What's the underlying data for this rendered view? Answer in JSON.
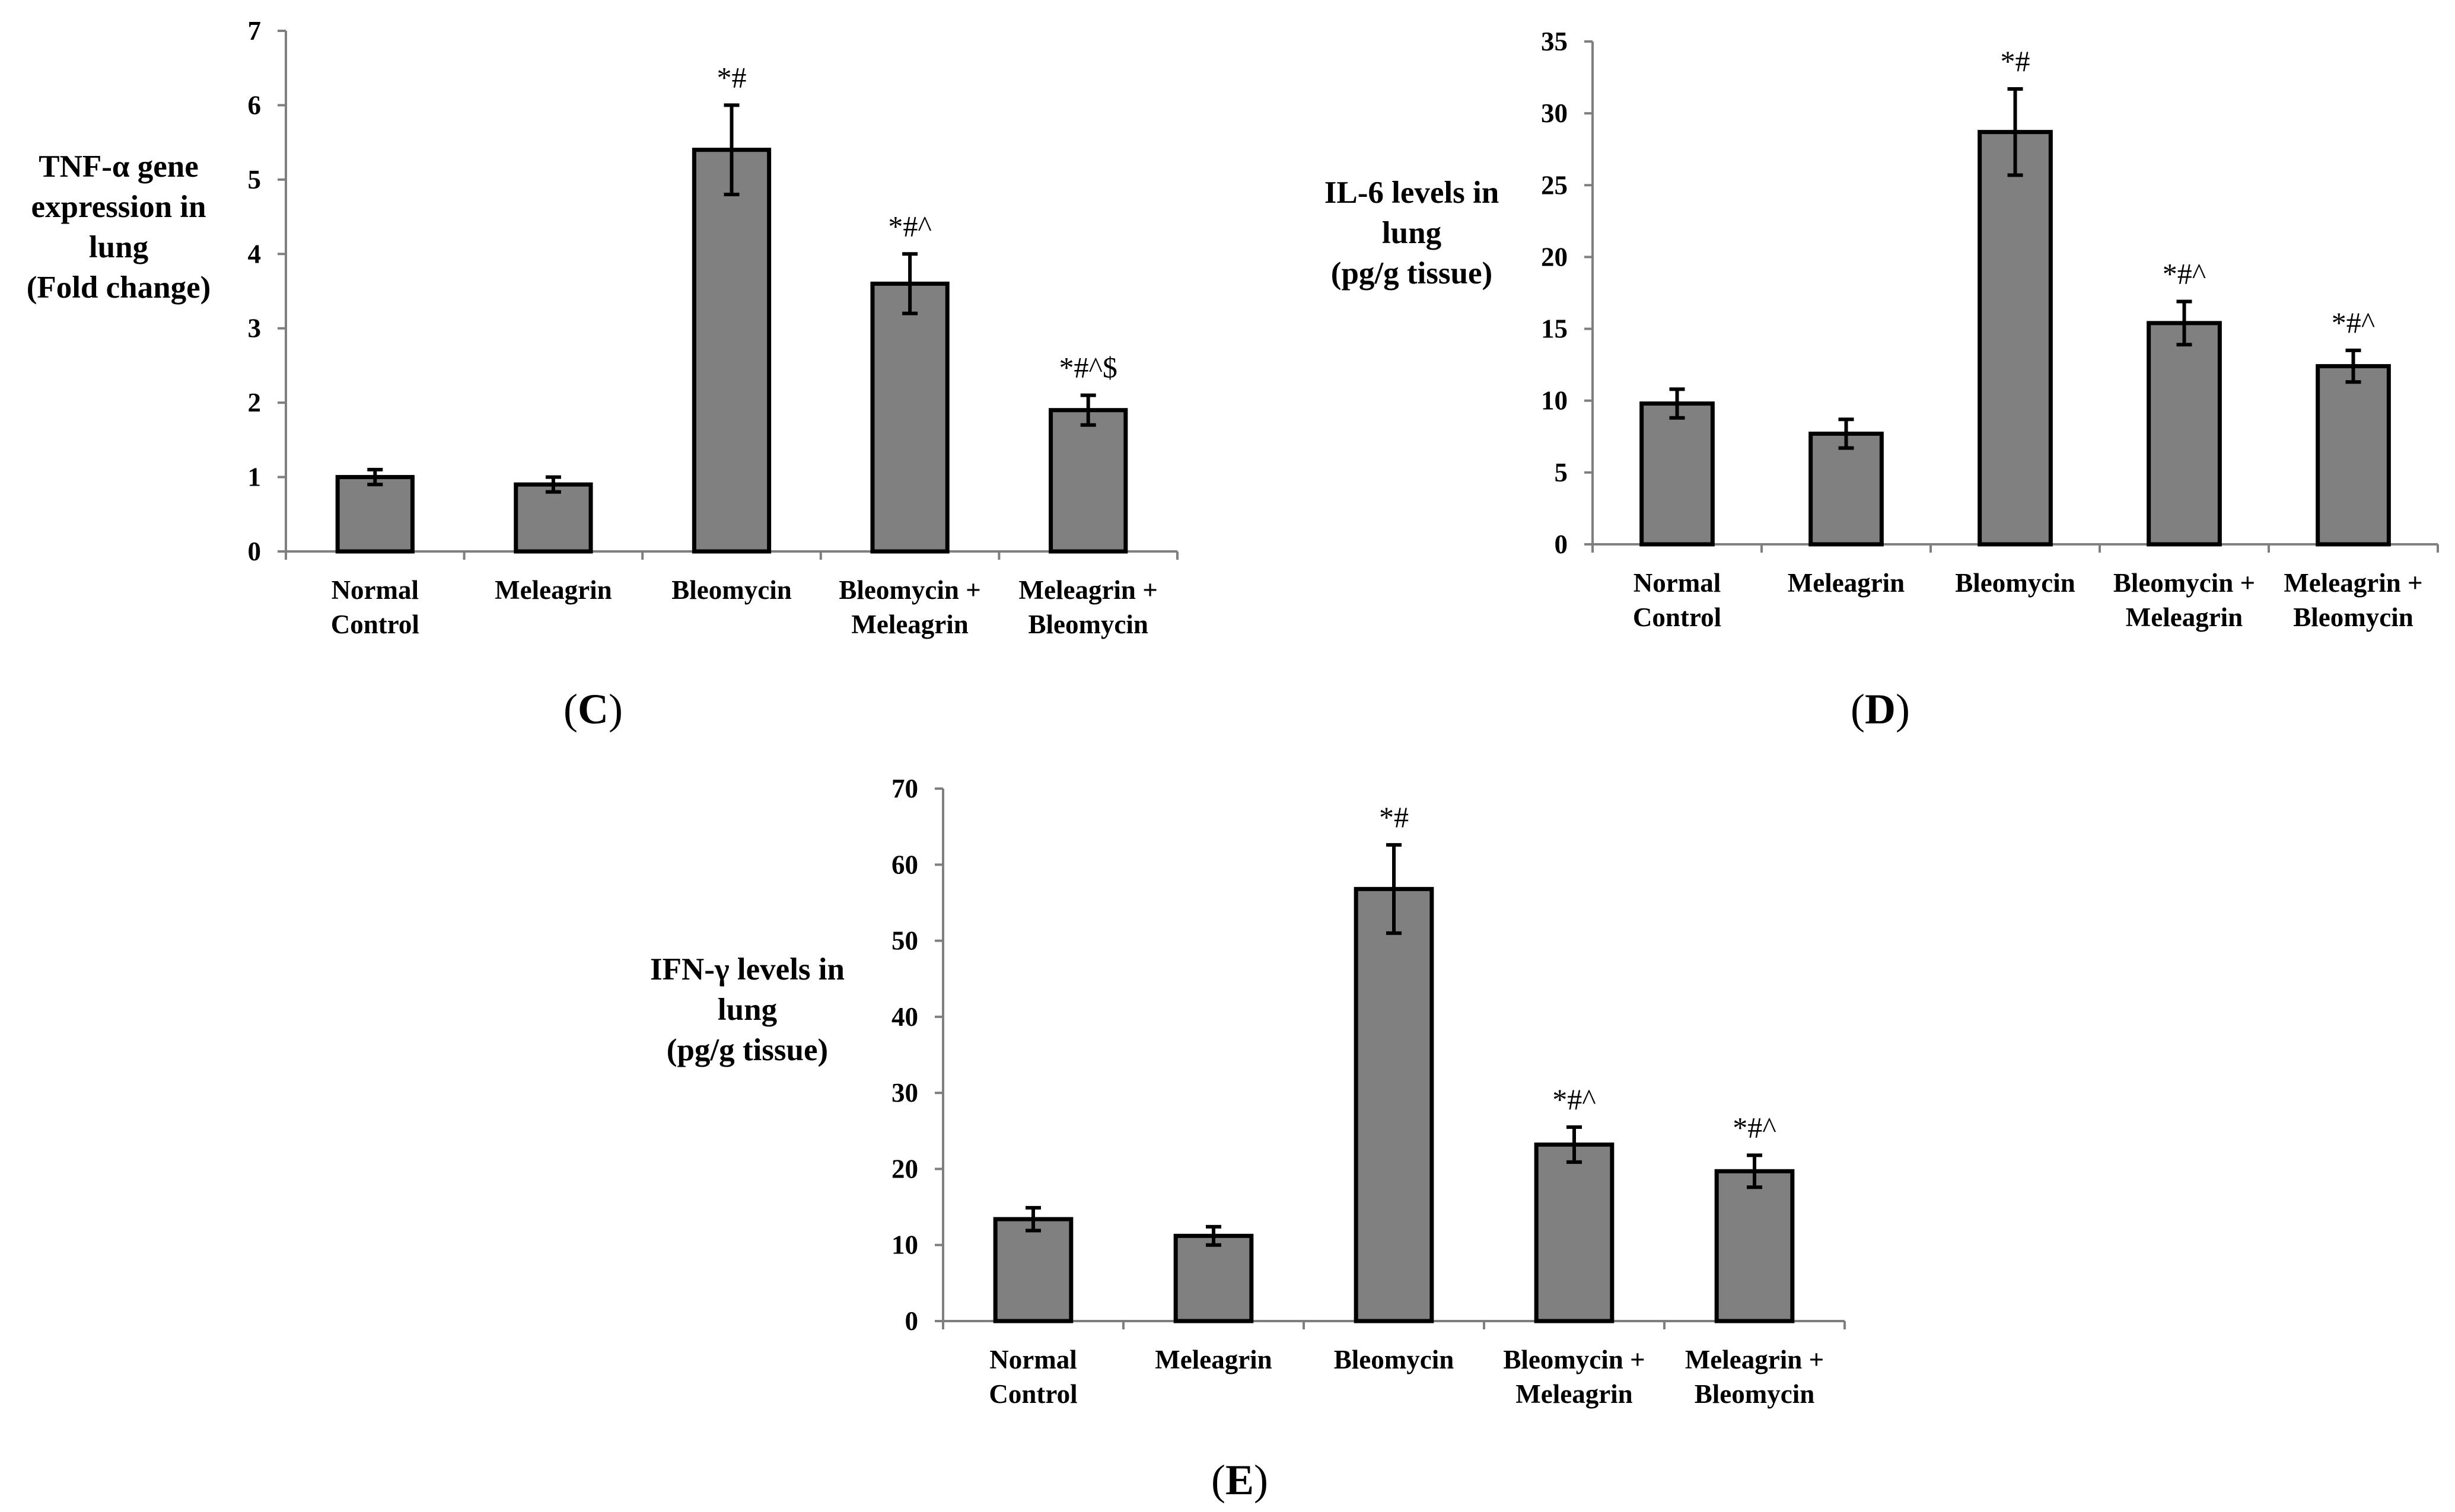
{
  "colors": {
    "bar_fill": "#808080",
    "bar_stroke": "#000000",
    "axis": "#7f7f7f"
  },
  "chart_data": [
    {
      "type": "bar",
      "panel": "(C)",
      "panel_letter": "C",
      "ylabel_lines": [
        "TNF-α gene",
        "expression in",
        "lung",
        "(Fold change)"
      ],
      "categories": [
        [
          "Normal",
          "Control"
        ],
        [
          "Meleagrin"
        ],
        [
          "Bleomycin"
        ],
        [
          "Bleomycin +",
          "Meleagrin"
        ],
        [
          "Meleagrin +",
          "Bleomycin"
        ]
      ],
      "values": [
        1.0,
        0.9,
        5.4,
        3.6,
        1.9
      ],
      "errors": [
        0.1,
        0.1,
        0.6,
        0.4,
        0.2
      ],
      "significance": [
        "",
        "",
        "*#",
        "*#^",
        "*#^$"
      ],
      "ylim": [
        0,
        7
      ],
      "yticks": [
        0,
        1,
        2,
        3,
        4,
        5,
        6,
        7
      ],
      "legend": null
    },
    {
      "type": "bar",
      "panel": "(D)",
      "panel_letter": "D",
      "ylabel_lines": [
        "IL-6 levels in",
        "lung",
        "(pg/g tissue)"
      ],
      "categories": [
        [
          "Normal",
          "Control"
        ],
        [
          "Meleagrin"
        ],
        [
          "Bleomycin"
        ],
        [
          "Bleomycin +",
          "Meleagrin"
        ],
        [
          "Meleagrin +",
          "Bleomycin"
        ]
      ],
      "values": [
        9.8,
        7.7,
        28.7,
        15.4,
        12.4
      ],
      "errors": [
        1.0,
        1.0,
        3.0,
        1.5,
        1.1
      ],
      "significance": [
        "",
        "",
        "*#",
        "*#^",
        "*#^"
      ],
      "ylim": [
        0,
        35
      ],
      "yticks": [
        0,
        5,
        10,
        15,
        20,
        25,
        30,
        35
      ],
      "legend": null
    },
    {
      "type": "bar",
      "panel": "(E)",
      "panel_letter": "E",
      "ylabel_lines": [
        "IFN-γ levels in",
        "lung",
        "(pg/g tissue)"
      ],
      "categories": [
        [
          "Normal",
          "Control"
        ],
        [
          "Meleagrin"
        ],
        [
          "Bleomycin"
        ],
        [
          "Bleomycin +",
          "Meleagrin"
        ],
        [
          "Meleagrin +",
          "Bleomycin"
        ]
      ],
      "values": [
        13.4,
        11.2,
        56.8,
        23.2,
        19.7
      ],
      "errors": [
        1.5,
        1.2,
        5.8,
        2.3,
        2.1
      ],
      "significance": [
        "",
        "",
        "*#",
        "*#^",
        "*#^"
      ],
      "ylim": [
        0,
        70
      ],
      "yticks": [
        0,
        10,
        20,
        30,
        40,
        50,
        60,
        70
      ],
      "legend": null
    }
  ]
}
